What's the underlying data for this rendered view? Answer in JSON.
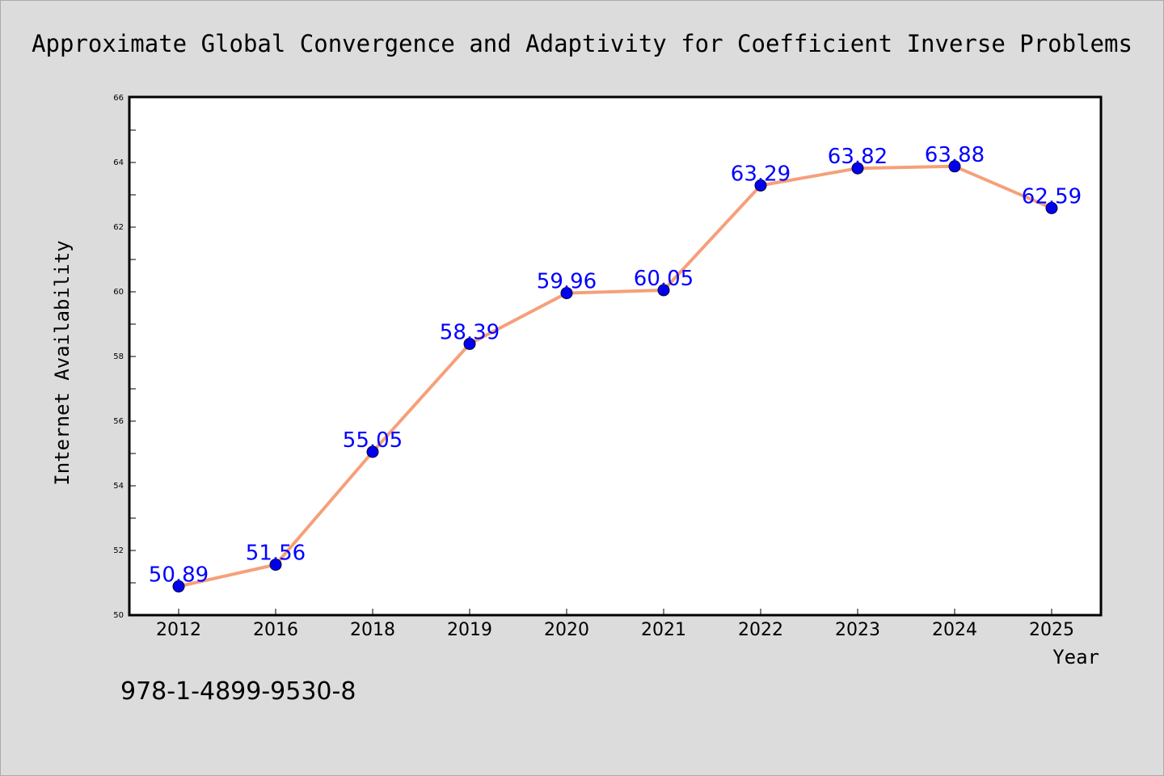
{
  "chart_data": {
    "type": "line",
    "title": "Approximate Global Convergence and Adaptivity for Coefficient Inverse Problems",
    "xlabel": "Year",
    "ylabel": "Internet Availability",
    "categories": [
      "2012",
      "2016",
      "2018",
      "2019",
      "2020",
      "2021",
      "2022",
      "2023",
      "2024",
      "2025"
    ],
    "series": [
      {
        "values": [
          50.89,
          51.56,
          55.05,
          58.39,
          59.96,
          60.05,
          63.29,
          63.82,
          63.88,
          62.59
        ],
        "labels": [
          "50.89",
          "51.56",
          "55.05",
          "58.39",
          "59.96",
          "60.05",
          "63.29",
          "63.82",
          "63.88",
          "62.59"
        ]
      }
    ],
    "ylim": [
      50,
      66
    ],
    "yticks": [
      "50",
      "52",
      "54",
      "56",
      "58",
      "60",
      "62",
      "64",
      "66"
    ],
    "grid": false,
    "legend": "none",
    "colors": {
      "line": "#f5a07a",
      "marker": "#0000ee",
      "data_label": "#0000ff",
      "background": "#dcdcdc",
      "plot_area": "#ffffff"
    }
  },
  "footer": {
    "isbn": "978-1-4899-9530-8"
  }
}
